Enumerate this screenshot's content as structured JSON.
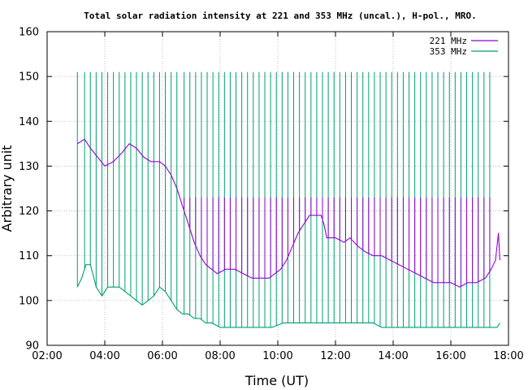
{
  "chart_data": {
    "type": "line",
    "title": "Total solar radiation intensity at 221 and 353 MHz (uncal.), H-pol., MRO.",
    "xlabel": "Time (UT)",
    "ylabel": "Arbitrary unit",
    "xlim": [
      2.0,
      18.0
    ],
    "ylim": [
      90,
      160
    ],
    "x_ticks": [
      "02:00",
      "04:00",
      "06:00",
      "08:00",
      "10:00",
      "12:00",
      "14:00",
      "16:00",
      "18:00"
    ],
    "y_ticks": [
      "90",
      "100",
      "110",
      "120",
      "130",
      "140",
      "150",
      "160"
    ],
    "grid": true,
    "legend_position": "top-right",
    "x_unit": "hours UT",
    "series": [
      {
        "name": "221 MHz",
        "color": "#9400d3",
        "x": [
          3.05,
          3.3,
          3.5,
          3.75,
          4.0,
          4.3,
          4.6,
          4.85,
          5.1,
          5.35,
          5.6,
          5.9,
          6.1,
          6.3,
          6.5,
          6.7,
          6.9,
          7.1,
          7.3,
          7.5,
          7.7,
          7.9,
          8.2,
          8.5,
          8.8,
          9.1,
          9.4,
          9.7,
          9.9,
          10.1,
          10.3,
          10.5,
          10.7,
          10.9,
          11.1,
          11.3,
          11.5,
          11.6,
          11.7,
          12.0,
          12.3,
          12.5,
          12.8,
          13.0,
          13.3,
          13.6,
          13.9,
          14.2,
          14.5,
          14.8,
          15.1,
          15.4,
          15.7,
          16.0,
          16.3,
          16.6,
          16.9,
          17.2,
          17.4,
          17.55,
          17.65,
          17.7
        ],
        "y": [
          135,
          136,
          134,
          132,
          130,
          131,
          133,
          135,
          134,
          132,
          131,
          131,
          130,
          128,
          125,
          121,
          117,
          113,
          110,
          108,
          107,
          106,
          107,
          107,
          106,
          105,
          105,
          105,
          106,
          107,
          109,
          112,
          115,
          117,
          119,
          119,
          119,
          117,
          114,
          114,
          113,
          114,
          112,
          111,
          110,
          110,
          109,
          108,
          107,
          106,
          105,
          104,
          104,
          104,
          103,
          104,
          104,
          105,
          107,
          109,
          115,
          109
        ]
      },
      {
        "name": "353 MHz",
        "color": "#009e73",
        "x": [
          3.05,
          3.2,
          3.35,
          3.5,
          3.7,
          3.9,
          4.1,
          4.3,
          4.5,
          4.7,
          4.9,
          5.1,
          5.3,
          5.5,
          5.7,
          5.9,
          6.1,
          6.3,
          6.5,
          6.7,
          6.9,
          7.1,
          7.3,
          7.5,
          7.7,
          8.0,
          8.3,
          8.6,
          9.0,
          9.4,
          9.8,
          10.2,
          10.6,
          11.0,
          11.5,
          12.0,
          12.5,
          13.0,
          13.3,
          13.6,
          14.0,
          14.5,
          15.0,
          15.5,
          16.0,
          16.5,
          17.0,
          17.3,
          17.6,
          17.7
        ],
        "y": [
          103,
          105,
          108,
          108,
          103,
          101,
          103,
          103,
          103,
          102,
          101,
          100,
          99,
          100,
          101,
          103,
          102,
          100,
          98,
          97,
          97,
          96,
          96,
          95,
          95,
          94,
          94,
          94,
          94,
          94,
          94,
          95,
          95,
          95,
          95,
          95,
          95,
          95,
          95,
          94,
          94,
          94,
          94,
          94,
          94,
          94,
          94,
          94,
          94,
          95
        ]
      }
    ],
    "spike_times": [
      3.05,
      3.3,
      3.5,
      3.7,
      3.9,
      4.1,
      4.3,
      4.5,
      4.7,
      4.9,
      5.1,
      5.3,
      5.5,
      5.7,
      5.9,
      6.1,
      6.3,
      6.5,
      6.75,
      6.95,
      7.15,
      7.35,
      7.55,
      7.75,
      7.95,
      8.15,
      8.35,
      8.55,
      8.75,
      8.95,
      9.15,
      9.35,
      9.55,
      9.75,
      9.95,
      10.15,
      10.35,
      10.55,
      10.75,
      10.95,
      11.15,
      11.35,
      11.55,
      11.75,
      11.95,
      12.15,
      12.35,
      12.55,
      12.75,
      12.95,
      13.15,
      13.35,
      13.55,
      13.75,
      13.95,
      14.15,
      14.35,
      14.55,
      14.75,
      14.95,
      15.15,
      15.35,
      15.55,
      15.75,
      15.95,
      16.15,
      16.35,
      16.55,
      16.75,
      16.95,
      17.15,
      17.35
    ],
    "spike_top_353": 151,
    "spike_top_221": 123
  }
}
